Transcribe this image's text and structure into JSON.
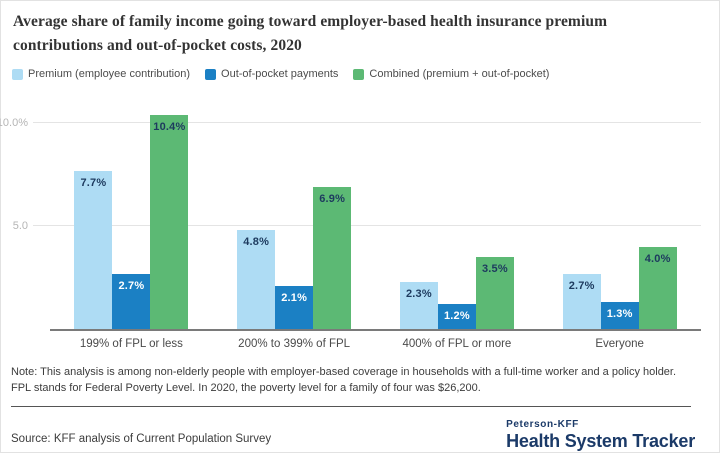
{
  "header": {
    "title": "Average share of family income going toward employer-based health insurance premium contributions and out-of-pocket costs, 2020"
  },
  "chart_data": {
    "type": "bar",
    "title": "Average share of family income going toward employer-based health insurance premium contributions and out-of-pocket costs, 2020",
    "categories": [
      "199% of FPL or less",
      "200% to 399% of FPL",
      "400% of FPL or more",
      "Everyone"
    ],
    "series": [
      {
        "name": "Premium (employee contribution)",
        "values": [
          7.7,
          4.8,
          2.3,
          2.7
        ],
        "color": "#aedcf4",
        "label_color": "#1d3a5e"
      },
      {
        "name": "Out-of-pocket payments",
        "values": [
          2.7,
          2.1,
          1.2,
          1.3
        ],
        "color": "#1b80c4",
        "label_color": "#ffffff"
      },
      {
        "name": "Combined (premium + out-of-pocket)",
        "values": [
          10.4,
          6.9,
          3.5,
          4.0
        ],
        "color": "#5cb974",
        "label_color": "#1d3a5e"
      }
    ],
    "value_suffix": "%",
    "yticks": [
      {
        "value": 5.0,
        "label": "5.0"
      },
      {
        "value": 10.0,
        "label": "10.0%"
      }
    ],
    "ylim": [
      0,
      10.6
    ],
    "grid": "horizontal",
    "legend_position": "top",
    "xlabel": "",
    "ylabel": ""
  },
  "footer": {
    "note": "Note: This analysis is among non-elderly people with employer-based coverage in households with a full-time worker and a policy holder. FPL stands for Federal Poverty Level. In 2020, the poverty level for a family of four was $26,200.",
    "source": "Source: KFF analysis of Current Population Survey",
    "brand_top": "Peterson-KFF",
    "brand_bottom": "Health System Tracker"
  },
  "colors": {
    "premium_blue": "#aedcf4",
    "oop_blue": "#1b80c4",
    "combined_green": "#5cb974",
    "brand_navy": "#1b3a68",
    "axis_line": "#7a7a7a",
    "gridline": "#e4e4e4",
    "tick_text": "#b5b5b5"
  }
}
